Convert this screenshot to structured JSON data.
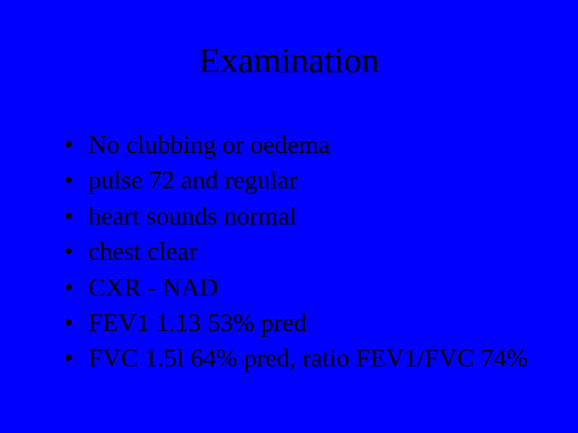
{
  "slide": {
    "background_color": "#0000ff",
    "text_color": "#000000",
    "font_family": "Times New Roman",
    "title": "Examination",
    "title_fontsize": 44,
    "bullet_fontsize": 32,
    "bullet_char": "•",
    "bullets": [
      "No clubbing or oedema",
      "pulse 72 and regular",
      "heart sounds normal",
      "chest clear",
      "CXR - NAD",
      "FEV1 1.13 53% pred",
      "FVC 1.5l 64% pred, ratio FEV1/FVC 74%"
    ]
  }
}
